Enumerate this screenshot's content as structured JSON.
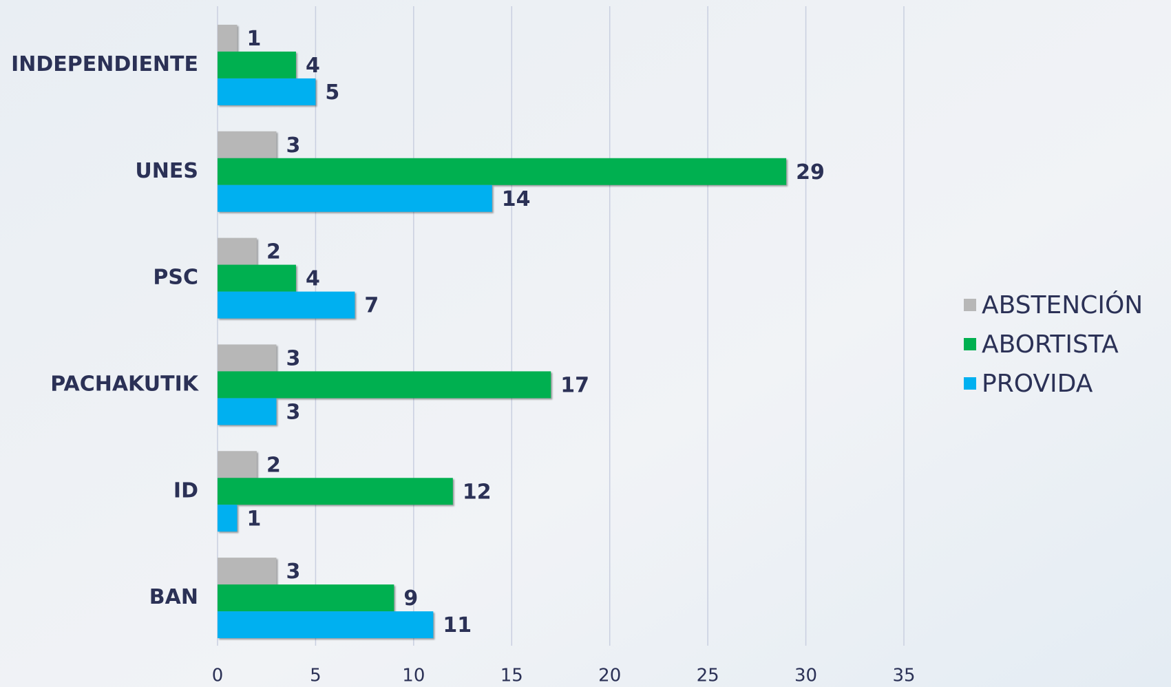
{
  "chart_data": {
    "type": "bar",
    "orientation": "horizontal",
    "categories": [
      "INDEPENDIENTE",
      "UNES",
      "PSC",
      "PACHAKUTIK",
      "ID",
      "BAN"
    ],
    "series": [
      {
        "name": "ABSTENCIÓN",
        "color": "#b7b7b7",
        "values": [
          1,
          3,
          2,
          3,
          2,
          3
        ]
      },
      {
        "name": "ABORTISTA",
        "color": "#00b050",
        "values": [
          4,
          29,
          4,
          17,
          12,
          9
        ]
      },
      {
        "name": "PROVIDA",
        "color": "#00b0f0",
        "values": [
          5,
          14,
          7,
          3,
          1,
          11
        ]
      }
    ],
    "xlim": [
      0,
      35
    ],
    "xticks": [
      0,
      5,
      10,
      15,
      20,
      25,
      30,
      35
    ],
    "grid": true,
    "legend": "right"
  }
}
